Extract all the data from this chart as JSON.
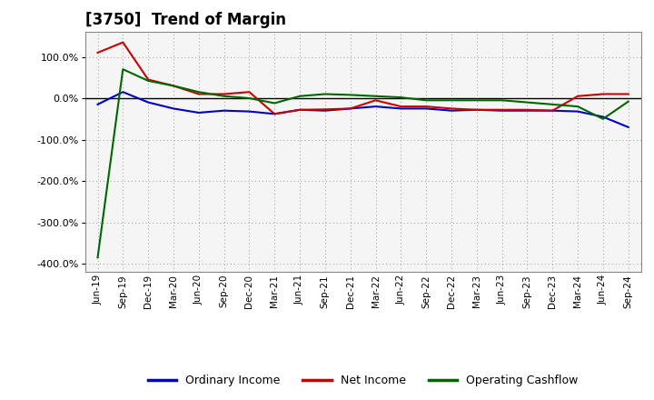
{
  "title": "[3750]  Trend of Margin",
  "x_labels": [
    "Jun-19",
    "Sep-19",
    "Dec-19",
    "Mar-20",
    "Jun-20",
    "Sep-20",
    "Dec-20",
    "Mar-21",
    "Jun-21",
    "Sep-21",
    "Dec-21",
    "Mar-22",
    "Jun-22",
    "Sep-22",
    "Dec-22",
    "Mar-23",
    "Jun-23",
    "Sep-23",
    "Dec-23",
    "Mar-24",
    "Jun-24",
    "Sep-24"
  ],
  "ordinary_income": [
    -15,
    15,
    -10,
    -25,
    -35,
    -30,
    -32,
    -38,
    -28,
    -30,
    -25,
    -20,
    -25,
    -25,
    -30,
    -28,
    -30,
    -30,
    -30,
    -32,
    -45,
    -70
  ],
  "net_income": [
    110,
    135,
    45,
    30,
    10,
    10,
    15,
    -38,
    -28,
    -27,
    -25,
    -5,
    -20,
    -20,
    -25,
    -28,
    -28,
    -28,
    -30,
    5,
    10,
    10
  ],
  "operating_cashflow": [
    -385,
    70,
    42,
    30,
    15,
    5,
    0,
    -12,
    5,
    10,
    8,
    5,
    2,
    -5,
    -5,
    -5,
    -5,
    -10,
    -15,
    -20,
    -50,
    -8
  ],
  "ylim": [
    -420,
    160
  ],
  "yticks": [
    100,
    0,
    -100,
    -200,
    -300,
    -400
  ],
  "line_colors": {
    "ordinary_income": "#0000cc",
    "net_income": "#cc0000",
    "operating_cashflow": "#006600"
  },
  "line_width": 1.5,
  "background_color": "#ffffff",
  "plot_bg_color": "#f5f5f5",
  "grid_color": "#999999",
  "legend_labels": [
    "Ordinary Income",
    "Net Income",
    "Operating Cashflow"
  ]
}
